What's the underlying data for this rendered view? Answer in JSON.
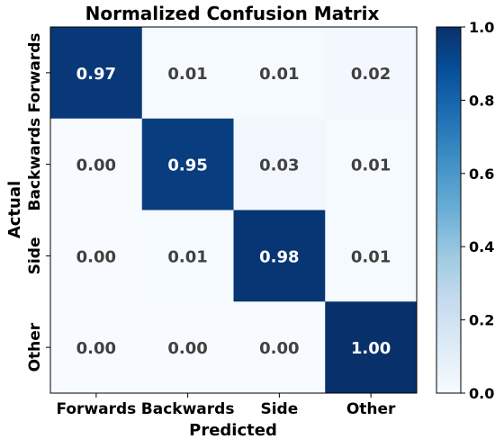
{
  "chart_data": {
    "type": "heatmap",
    "title": "Normalized Confusion Matrix",
    "xlabel": "Predicted",
    "ylabel": "Actual",
    "x_categories": [
      "Forwards",
      "Backwards",
      "Side",
      "Other"
    ],
    "y_categories": [
      "Forwards",
      "Backwards",
      "Side",
      "Other"
    ],
    "values": [
      [
        0.97,
        0.01,
        0.01,
        0.02
      ],
      [
        0.0,
        0.95,
        0.03,
        0.01
      ],
      [
        0.0,
        0.01,
        0.98,
        0.01
      ],
      [
        0.0,
        0.0,
        0.0,
        1.0
      ]
    ],
    "colorbar": {
      "range": [
        0.0,
        1.0
      ],
      "ticks": [
        "0.0",
        "0.2",
        "0.4",
        "0.6",
        "0.8",
        "1.0"
      ]
    },
    "colormap": [
      "#f7fbff",
      "#deebf7",
      "#c6dbef",
      "#9ecae1",
      "#6baed6",
      "#4292c6",
      "#2171b5",
      "#08519c",
      "#08306b"
    ],
    "grid": false
  }
}
